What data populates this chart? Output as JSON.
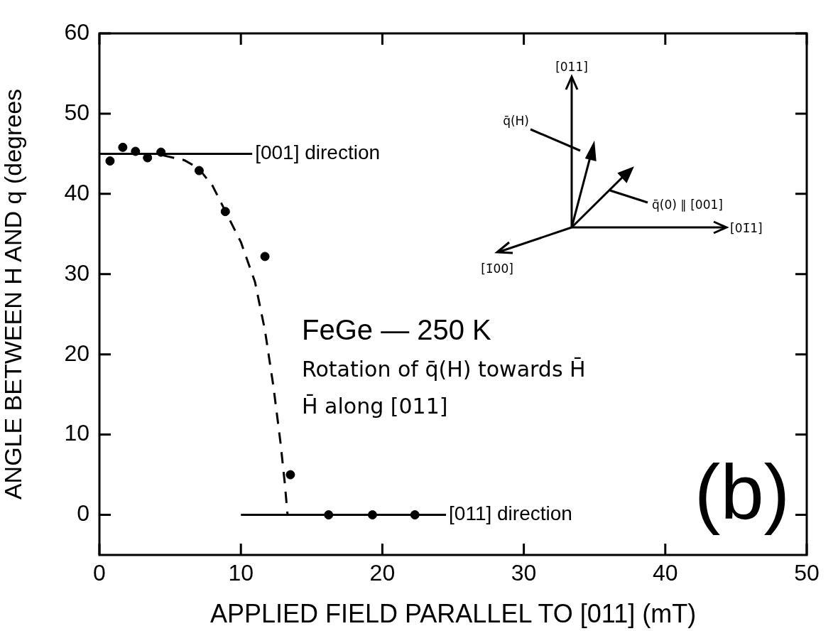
{
  "chart_data": {
    "type": "scatter",
    "xlabel": "APPLIED FIELD PARALLEL TO [011] (mT)",
    "ylabel": "ANGLE BETWEEN H AND q (degrees",
    "xlim": [
      0,
      50
    ],
    "xticks": [
      0,
      10,
      20,
      30,
      40,
      50
    ],
    "ylim": [
      -5,
      60
    ],
    "yticks": [
      0,
      10,
      20,
      30,
      40,
      50,
      60
    ],
    "grid": false,
    "legend": false,
    "marker": "circle",
    "series": [
      {
        "color": "#000000",
        "x": [
          0.75,
          1.65,
          2.55,
          3.4,
          4.35,
          7.05,
          8.9,
          11.7,
          13.5,
          16.2,
          19.3,
          22.3
        ],
        "values": [
          44.1,
          45.8,
          45.3,
          44.5,
          45.2,
          42.9,
          37.8,
          32.2,
          5.0,
          0,
          0,
          0
        ]
      },
      {
        "type": "line",
        "line_style": "dashed",
        "marker": "none",
        "color": "#000000",
        "x": [
          4.5,
          6,
          7,
          8,
          9,
          10,
          11,
          11.7,
          12.3,
          12.8,
          13.1,
          13.3
        ],
        "values": [
          44.8,
          44.2,
          43.2,
          41,
          37.5,
          34,
          29,
          23,
          16,
          9,
          4,
          0
        ]
      },
      {
        "type": "line",
        "line_style": "solid",
        "marker": "none",
        "color": "#000000",
        "x": [
          0,
          10.8
        ],
        "values": [
          45,
          45
        ]
      },
      {
        "type": "line",
        "line_style": "solid",
        "marker": "none",
        "color": "#000000",
        "x": [
          10,
          24.5
        ],
        "values": [
          0,
          0
        ]
      }
    ],
    "annotations": [
      "FeGe — 250 K",
      "Rotation of q̄(H) towards H̄",
      "H̄ along [011]",
      "(b)",
      "[011]",
      "q̄(H)",
      "q̄(0) ∥ [001]",
      "[01̄1]",
      "[1̄00]",
      {
        "text": "[001] direction",
        "x": 10.8,
        "y": 45
      },
      {
        "text": "[011] direction",
        "x": 24.5,
        "y": 0
      }
    ]
  }
}
